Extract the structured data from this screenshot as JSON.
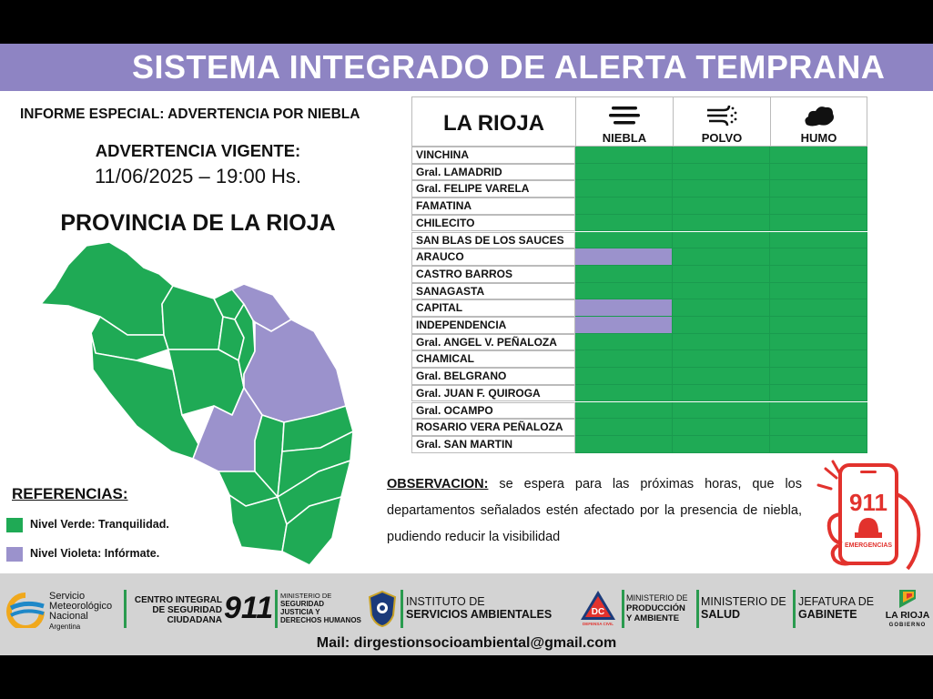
{
  "header": {
    "title": "SISTEMA INTEGRADO DE ALERTA TEMPRANA"
  },
  "report": {
    "subtitle": "INFORME ESPECIAL: ADVERTENCIA POR NIEBLA",
    "advisory_label": "ADVERTENCIA VIGENTE:",
    "advisory_datetime": "11/06/2025 – 19:00 Hs.",
    "province_title": "PROVINCIA DE LA RIOJA"
  },
  "colors": {
    "green": "#1faa55",
    "violet": "#9b92cc",
    "banner": "#8e84c3"
  },
  "references": {
    "title": "REFERENCIAS:",
    "items": [
      {
        "label": "Nivel Verde: Tranquilidad.",
        "color": "#1faa55"
      },
      {
        "label": "Nivel Violeta: Infórmate.",
        "color": "#9b92cc"
      }
    ]
  },
  "table": {
    "region": "LA RIOJA",
    "columns": [
      {
        "label": "NIEBLA",
        "icon": "fog-icon"
      },
      {
        "label": "POLVO",
        "icon": "dust-wind-icon"
      },
      {
        "label": "HUMO",
        "icon": "smoke-icon"
      }
    ],
    "rows": [
      {
        "name": "VINCHINA",
        "levels": [
          "verde",
          "verde",
          "verde"
        ]
      },
      {
        "name": "Gral. LAMADRID",
        "levels": [
          "verde",
          "verde",
          "verde"
        ]
      },
      {
        "name": "Gral. FELIPE VARELA",
        "levels": [
          "verde",
          "verde",
          "verde"
        ]
      },
      {
        "name": "FAMATINA",
        "levels": [
          "verde",
          "verde",
          "verde"
        ]
      },
      {
        "name": "CHILECITO",
        "levels": [
          "verde",
          "verde",
          "verde"
        ]
      },
      {
        "name": "SAN BLAS DE LOS SAUCES",
        "levels": [
          "verde",
          "verde",
          "verde"
        ]
      },
      {
        "name": "ARAUCO",
        "levels": [
          "violeta",
          "verde",
          "verde"
        ]
      },
      {
        "name": "CASTRO BARROS",
        "levels": [
          "verde",
          "verde",
          "verde"
        ]
      },
      {
        "name": "SANAGASTA",
        "levels": [
          "verde",
          "verde",
          "verde"
        ]
      },
      {
        "name": "CAPITAL",
        "levels": [
          "violeta",
          "verde",
          "verde"
        ]
      },
      {
        "name": "INDEPENDENCIA",
        "levels": [
          "violeta",
          "verde",
          "verde"
        ]
      },
      {
        "name": "Gral. ANGEL V. PEÑALOZA",
        "levels": [
          "verde",
          "verde",
          "verde"
        ]
      },
      {
        "name": "CHAMICAL",
        "levels": [
          "verde",
          "verde",
          "verde"
        ]
      },
      {
        "name": "Gral. BELGRANO",
        "levels": [
          "verde",
          "verde",
          "verde"
        ]
      },
      {
        "name": "Gral. JUAN F. QUIROGA",
        "levels": [
          "verde",
          "verde",
          "verde"
        ]
      },
      {
        "name": "Gral. OCAMPO",
        "levels": [
          "verde",
          "verde",
          "verde"
        ]
      },
      {
        "name": "ROSARIO VERA PEÑALOZA",
        "levels": [
          "verde",
          "verde",
          "verde"
        ]
      },
      {
        "name": "Gral. SAN MARTIN",
        "levels": [
          "verde",
          "verde",
          "verde"
        ]
      }
    ]
  },
  "observation": {
    "label": "OBSERVACION:",
    "text": " se espera para las próximas horas, que los departamentos señalados estén afectado por la presencia de niebla, pudiendo reducir la visibilidad"
  },
  "emergency": {
    "number": "911",
    "caption": "EMERGENCIAS"
  },
  "footer": {
    "smn": [
      "Servicio",
      "Meteorológico",
      "Nacional",
      "Argentina"
    ],
    "centro": [
      "CENTRO INTEGRAL",
      "DE SEGURIDAD",
      "CIUDADANA"
    ],
    "centro_number": "911",
    "ministerio_seguridad": [
      "MINISTERIO DE",
      "SEGURIDAD",
      "JUSTICIA Y",
      "DERECHOS HUMANOS"
    ],
    "instituto": [
      "INSTITUTO DE",
      "SERVICIOS AMBIENTALES"
    ],
    "dc_badge": "DC",
    "dc_caption": "DEFENSA CIVIL",
    "ministerio_produccion": [
      "MINISTERIO DE",
      "PRODUCCIÓN",
      "Y AMBIENTE"
    ],
    "ministerio_salud": [
      "MINISTERIO DE",
      "SALUD"
    ],
    "jefatura": [
      "JEFATURA DE",
      "GABINETE"
    ],
    "gobierno": [
      "LA RIOJA",
      "GOBIERNO"
    ],
    "email": "Mail: dirgestionsocioambiental@gmail.com"
  }
}
